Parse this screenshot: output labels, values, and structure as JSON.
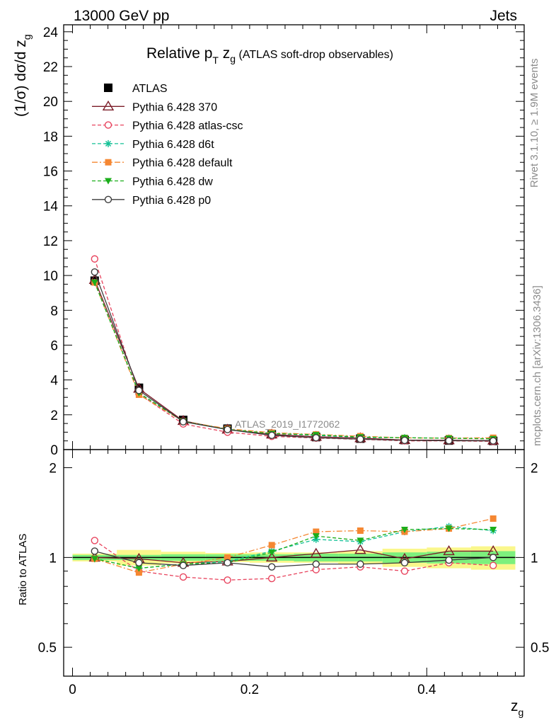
{
  "header": {
    "left": "13000 GeV pp",
    "right": "Jets"
  },
  "side": {
    "rivet": "Rivet 3.1.10, ≥ 1.9M events",
    "mcplots": "mcplots.cern.ch [arXiv:1306.3436]"
  },
  "title": {
    "main": "Relative p",
    "main_sub": "T",
    "main_tail": " z",
    "main_tail_sub": "g",
    "paren": " (ATLAS soft-drop observables)"
  },
  "watermark": "ATLAS_2019_I1772062",
  "axes": {
    "ylabel_top": "(1/σ) dσ/d z",
    "ylabel_top_sub": "g",
    "ylabel_bottom": "Ratio to ATLAS",
    "xlabel": "z",
    "xlabel_sub": "g"
  },
  "chart_data": [
    {
      "type": "line",
      "panel": "main",
      "x": [
        0.025,
        0.075,
        0.125,
        0.175,
        0.225,
        0.275,
        0.325,
        0.375,
        0.425,
        0.475
      ],
      "x_range": [
        -0.01,
        0.51
      ],
      "ylim": [
        0,
        24.4
      ],
      "xticks": [
        0,
        0.2,
        0.4
      ],
      "xtick_labels": [
        "0",
        "0.2",
        "0.4"
      ],
      "yticks": [
        0,
        2,
        4,
        6,
        8,
        10,
        12,
        14,
        16,
        18,
        20,
        22,
        24
      ],
      "ytick_labels": [
        "0",
        "2",
        "4",
        "6",
        "8",
        "10",
        "12",
        "14",
        "16",
        "18",
        "20",
        "22",
        "24"
      ],
      "legend_position": "top-left",
      "series": [
        {
          "name": "ATLAS",
          "color": "#000000",
          "marker": "square",
          "dash": "none",
          "values": [
            9.7,
            3.55,
            1.7,
            1.2,
            0.88,
            0.72,
            0.63,
            0.55,
            0.52,
            0.5
          ]
        },
        {
          "name": "Pythia 6.428 370",
          "color": "#7b1c28",
          "marker": "triangle-open",
          "dash": "solid",
          "values": [
            9.75,
            3.5,
            1.65,
            1.15,
            0.87,
            0.74,
            0.66,
            0.55,
            0.54,
            0.52
          ]
        },
        {
          "name": "Pythia 6.428 atlas-csc",
          "color": "#e8445e",
          "marker": "circle-open",
          "dash": "dash",
          "values": [
            10.95,
            3.2,
            1.47,
            1.0,
            0.76,
            0.66,
            0.59,
            0.5,
            0.5,
            0.47
          ]
        },
        {
          "name": "Pythia 6.428 d6t",
          "color": "#13c196",
          "marker": "star",
          "dash": "dash",
          "values": [
            9.6,
            3.25,
            1.62,
            1.17,
            0.93,
            0.82,
            0.7,
            0.68,
            0.66,
            0.62
          ]
        },
        {
          "name": "Pythia 6.428 default",
          "color": "#f58732",
          "marker": "square-filled",
          "dash": "dashdot",
          "values": [
            9.6,
            3.15,
            1.62,
            1.2,
            0.97,
            0.87,
            0.77,
            0.67,
            0.66,
            0.68
          ]
        },
        {
          "name": "Pythia 6.428 dw",
          "color": "#1bae1b",
          "marker": "triangle-down-filled",
          "dash": "dash",
          "values": [
            9.6,
            3.25,
            1.62,
            1.15,
            0.92,
            0.85,
            0.72,
            0.68,
            0.65,
            0.62
          ]
        },
        {
          "name": "Pythia 6.428 p0",
          "color": "#3c3c3c",
          "marker": "circle-open",
          "dash": "solid",
          "values": [
            10.2,
            3.4,
            1.6,
            1.15,
            0.82,
            0.68,
            0.6,
            0.53,
            0.51,
            0.5
          ]
        }
      ]
    },
    {
      "type": "line",
      "panel": "ratio",
      "x": [
        0.025,
        0.075,
        0.125,
        0.175,
        0.225,
        0.275,
        0.325,
        0.375,
        0.425,
        0.475
      ],
      "x_range": [
        -0.01,
        0.51
      ],
      "ylim": [
        0.4,
        2.3
      ],
      "y_scale": "log",
      "yticks": [
        0.5,
        1,
        2
      ],
      "ytick_labels": [
        "0.5",
        "1",
        "2"
      ],
      "xticks": [
        0,
        0.2,
        0.4
      ],
      "xtick_labels": [
        "0",
        "0.2",
        "0.4"
      ],
      "reference_line": 1,
      "uncertainty_bands": {
        "bin_edges": [
          0,
          0.05,
          0.1,
          0.15,
          0.2,
          0.25,
          0.3,
          0.35,
          0.4,
          0.45,
          0.5
        ],
        "stat_color": "#7df07d",
        "total_color": "#faf78c",
        "stat": [
          0.02,
          0.02,
          0.025,
          0.025,
          0.025,
          0.03,
          0.03,
          0.04,
          0.045,
          0.05
        ],
        "total": [
          0.03,
          0.06,
          0.045,
          0.035,
          0.04,
          0.04,
          0.05,
          0.07,
          0.08,
          0.09
        ]
      },
      "series": [
        {
          "name": "Pythia 6.428 370",
          "color": "#7b1c28",
          "marker": "triangle-open",
          "dash": "solid",
          "values": [
            1.0,
            0.99,
            0.96,
            0.97,
            1.0,
            1.03,
            1.06,
            0.99,
            1.05,
            1.05
          ]
        },
        {
          "name": "Pythia 6.428 atlas-csc",
          "color": "#e8445e",
          "marker": "circle-open",
          "dash": "dash",
          "values": [
            1.14,
            0.9,
            0.86,
            0.84,
            0.85,
            0.91,
            0.93,
            0.9,
            0.96,
            0.94
          ]
        },
        {
          "name": "Pythia 6.428 d6t",
          "color": "#13c196",
          "marker": "star",
          "dash": "dash",
          "values": [
            0.99,
            0.92,
            0.95,
            0.97,
            1.05,
            1.15,
            1.13,
            1.22,
            1.27,
            1.23
          ]
        },
        {
          "name": "Pythia 6.428 default",
          "color": "#f58732",
          "marker": "square-filled",
          "dash": "dashdot",
          "values": [
            0.99,
            0.89,
            0.95,
            1.0,
            1.1,
            1.22,
            1.23,
            1.22,
            1.25,
            1.35
          ]
        },
        {
          "name": "Pythia 6.428 dw",
          "color": "#1bae1b",
          "marker": "triangle-down-filled",
          "dash": "dash",
          "values": [
            0.99,
            0.92,
            0.95,
            0.96,
            1.04,
            1.18,
            1.14,
            1.24,
            1.25,
            1.24
          ]
        },
        {
          "name": "Pythia 6.428 p0",
          "color": "#3c3c3c",
          "marker": "circle-open",
          "dash": "solid",
          "values": [
            1.05,
            0.96,
            0.94,
            0.96,
            0.93,
            0.95,
            0.95,
            0.96,
            0.98,
            1.0
          ]
        }
      ]
    }
  ]
}
